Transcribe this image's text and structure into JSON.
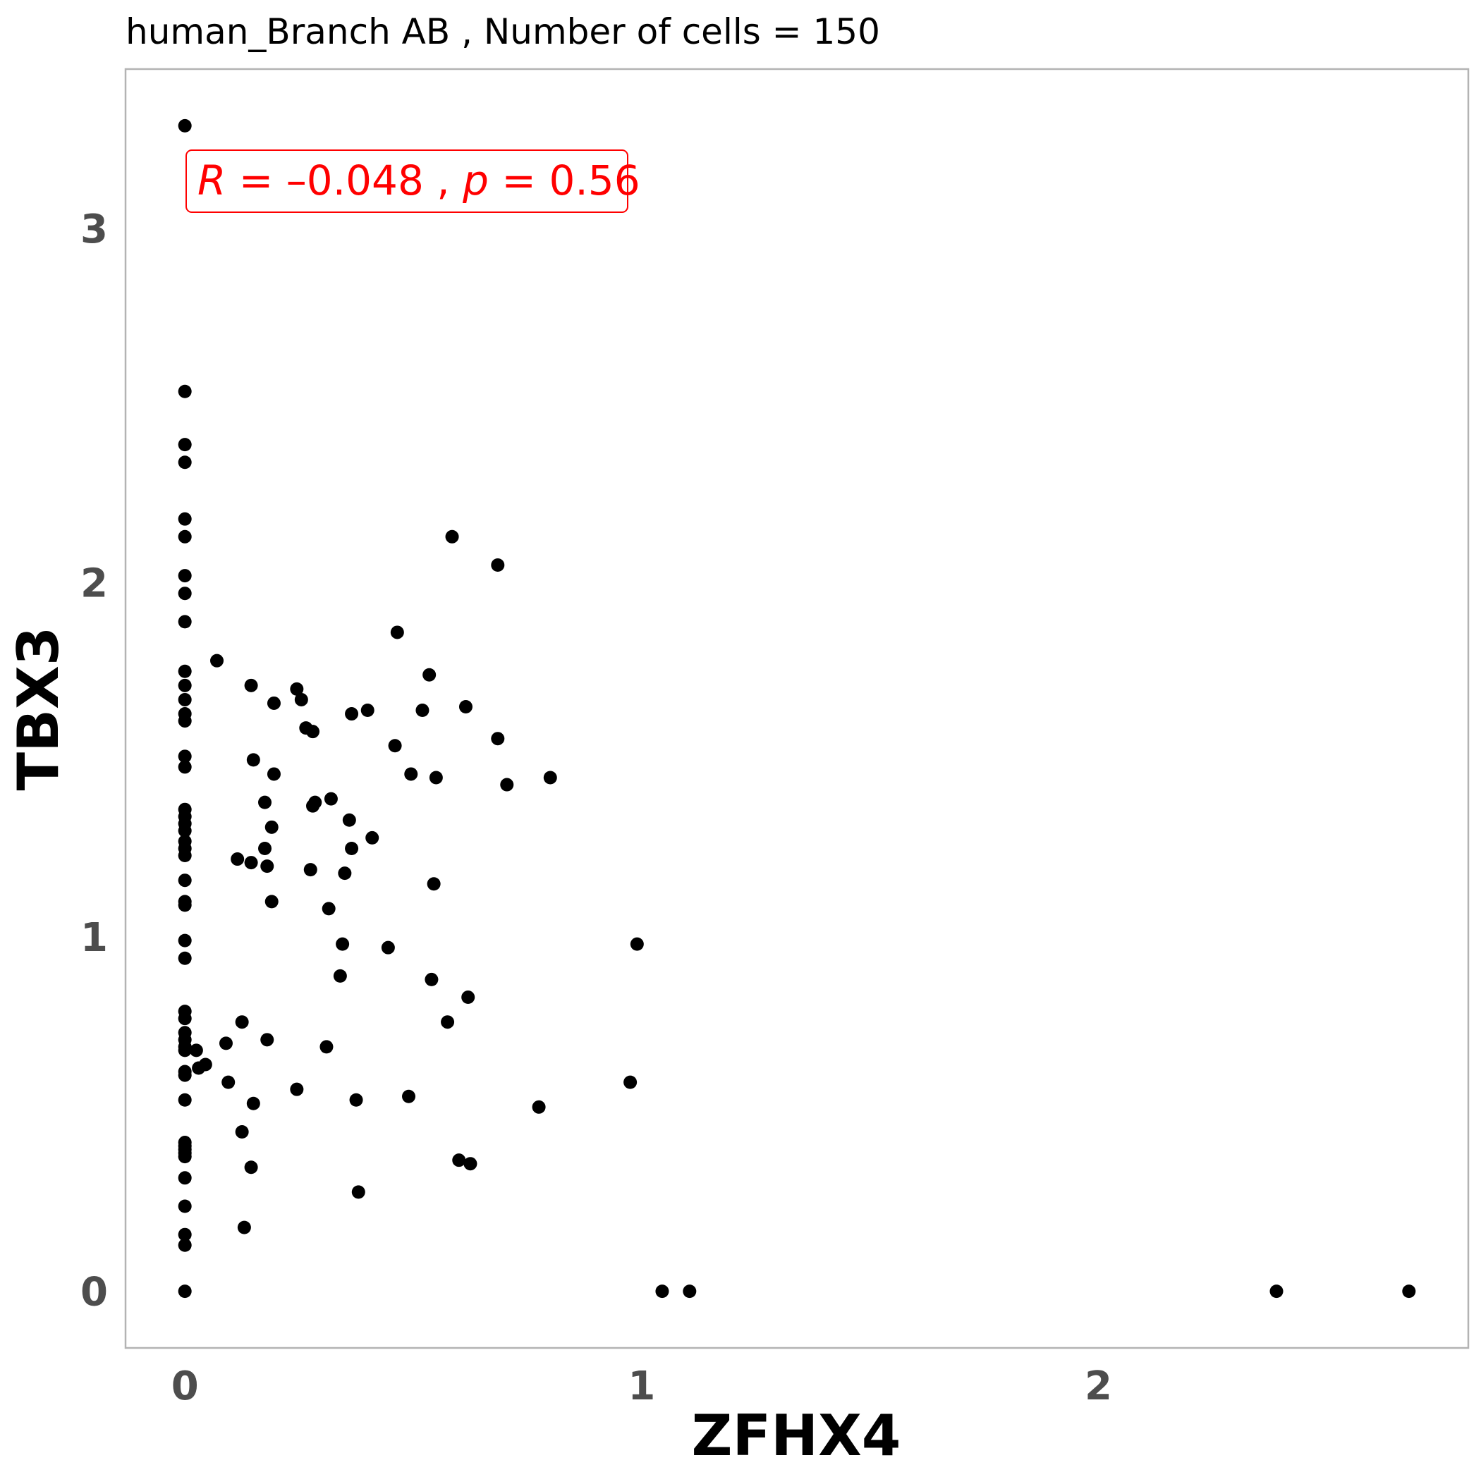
{
  "chart_data": {
    "type": "scatter",
    "title": "human_Branch AB , Number of cells =  150",
    "xlabel": "ZFHX4",
    "ylabel": "TBX3",
    "xlim": [
      -0.13,
      2.81
    ],
    "ylim": [
      -0.16,
      3.45
    ],
    "xticks": [
      0,
      1,
      2
    ],
    "yticks": [
      0,
      1,
      2,
      3
    ],
    "grid": false,
    "point_color": "#000000",
    "annotation": {
      "r_label": "R",
      "r_value": "–0.048",
      "p_label": "p",
      "p_value": "0.56",
      "color": "#ff0000"
    },
    "points": [
      [
        0,
        3.29
      ],
      [
        0,
        2.54
      ],
      [
        0,
        2.39
      ],
      [
        0,
        2.34
      ],
      [
        0,
        2.18
      ],
      [
        0,
        2.13
      ],
      [
        0,
        2.02
      ],
      [
        0,
        1.97
      ],
      [
        0,
        1.89
      ],
      [
        0,
        1.75
      ],
      [
        0,
        1.71
      ],
      [
        0,
        1.67
      ],
      [
        0,
        1.63
      ],
      [
        0,
        1.61
      ],
      [
        0,
        1.51
      ],
      [
        0,
        1.48
      ],
      [
        0,
        1.36
      ],
      [
        0,
        1.34
      ],
      [
        0,
        1.32
      ],
      [
        0,
        1.3
      ],
      [
        0,
        1.27
      ],
      [
        0,
        1.25
      ],
      [
        0,
        1.23
      ],
      [
        0,
        1.16
      ],
      [
        0,
        1.1
      ],
      [
        0,
        1.09
      ],
      [
        0,
        0.99
      ],
      [
        0,
        0.94
      ],
      [
        0,
        0.79
      ],
      [
        0,
        0.77
      ],
      [
        0,
        0.73
      ],
      [
        0,
        0.71
      ],
      [
        0,
        0.69
      ],
      [
        0,
        0.68
      ],
      [
        0,
        0.62
      ],
      [
        0,
        0.61
      ],
      [
        0,
        0.54
      ],
      [
        0,
        0.42
      ],
      [
        0,
        0.41
      ],
      [
        0,
        0.4
      ],
      [
        0,
        0.39
      ],
      [
        0,
        0.38
      ],
      [
        0,
        0.32
      ],
      [
        0,
        0.24
      ],
      [
        0,
        0.16
      ],
      [
        0,
        0.13
      ],
      [
        0,
        0.0
      ],
      [
        0.07,
        1.78
      ],
      [
        0.025,
        0.68
      ],
      [
        0.03,
        0.63
      ],
      [
        0.045,
        0.64
      ],
      [
        0.09,
        0.7
      ],
      [
        0.095,
        0.59
      ],
      [
        0.115,
        1.22
      ],
      [
        0.125,
        0.76
      ],
      [
        0.125,
        0.45
      ],
      [
        0.13,
        0.18
      ],
      [
        0.145,
        1.71
      ],
      [
        0.145,
        1.21
      ],
      [
        0.145,
        0.35
      ],
      [
        0.15,
        0.53
      ],
      [
        0.15,
        1.5
      ],
      [
        0.175,
        1.38
      ],
      [
        0.175,
        1.25
      ],
      [
        0.18,
        1.2
      ],
      [
        0.18,
        0.71
      ],
      [
        0.19,
        1.31
      ],
      [
        0.19,
        1.1
      ],
      [
        0.195,
        1.46
      ],
      [
        0.195,
        1.66
      ],
      [
        0.245,
        1.7
      ],
      [
        0.245,
        0.57
      ],
      [
        0.255,
        1.67
      ],
      [
        0.265,
        1.59
      ],
      [
        0.275,
        1.19
      ],
      [
        0.28,
        1.58
      ],
      [
        0.28,
        1.37
      ],
      [
        0.285,
        1.38
      ],
      [
        0.31,
        0.69
      ],
      [
        0.315,
        1.08
      ],
      [
        0.32,
        1.39
      ],
      [
        0.34,
        0.89
      ],
      [
        0.345,
        0.98
      ],
      [
        0.35,
        1.18
      ],
      [
        0.36,
        1.33
      ],
      [
        0.365,
        1.25
      ],
      [
        0.365,
        1.63
      ],
      [
        0.375,
        0.54
      ],
      [
        0.38,
        0.28
      ],
      [
        0.4,
        1.64
      ],
      [
        0.41,
        1.28
      ],
      [
        0.445,
        0.97
      ],
      [
        0.46,
        1.54
      ],
      [
        0.465,
        1.86
      ],
      [
        0.49,
        0.55
      ],
      [
        0.495,
        1.46
      ],
      [
        0.52,
        1.64
      ],
      [
        0.535,
        1.74
      ],
      [
        0.54,
        0.88
      ],
      [
        0.545,
        1.15
      ],
      [
        0.55,
        1.45
      ],
      [
        0.575,
        0.76
      ],
      [
        0.585,
        2.13
      ],
      [
        0.6,
        0.37
      ],
      [
        0.615,
        1.65
      ],
      [
        0.62,
        0.83
      ],
      [
        0.625,
        0.36
      ],
      [
        0.685,
        1.56
      ],
      [
        0.685,
        2.05
      ],
      [
        0.705,
        1.43
      ],
      [
        0.775,
        0.52
      ],
      [
        0.8,
        1.45
      ],
      [
        0.975,
        0.59
      ],
      [
        0.99,
        0.98
      ],
      [
        1.045,
        0.0
      ],
      [
        1.105,
        0.0
      ],
      [
        2.39,
        0.0
      ],
      [
        2.68,
        0.0
      ]
    ]
  }
}
